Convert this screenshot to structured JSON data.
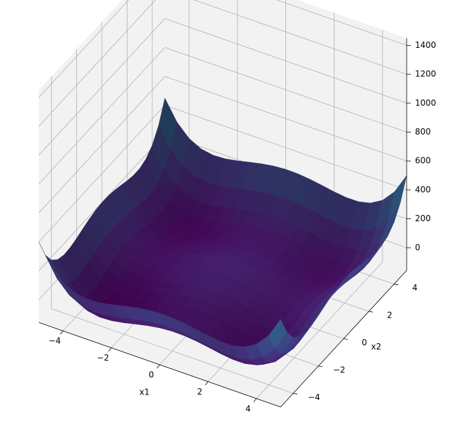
{
  "chart_data": {
    "type": "surface",
    "colormap": "viridis",
    "function": "x1^4 - 16*x1^2 + 5*x1 + x2^4 - 16*x2^2 + 5*x2",
    "x1": {
      "label": "x1",
      "range": [
        -5,
        5
      ],
      "ticks": [
        -4,
        -2,
        0,
        2,
        4
      ]
    },
    "x2": {
      "label": "x2",
      "range": [
        -5,
        5
      ],
      "ticks": [
        -4,
        -2,
        0,
        2,
        4
      ]
    },
    "z": {
      "label": "",
      "range": [
        -157,
        1450
      ],
      "ticks": [
        0,
        200,
        400,
        600,
        800,
        1000,
        1200,
        1400
      ]
    },
    "grid_points": 21,
    "grid": true,
    "background_panes": "#f2f2f2"
  }
}
